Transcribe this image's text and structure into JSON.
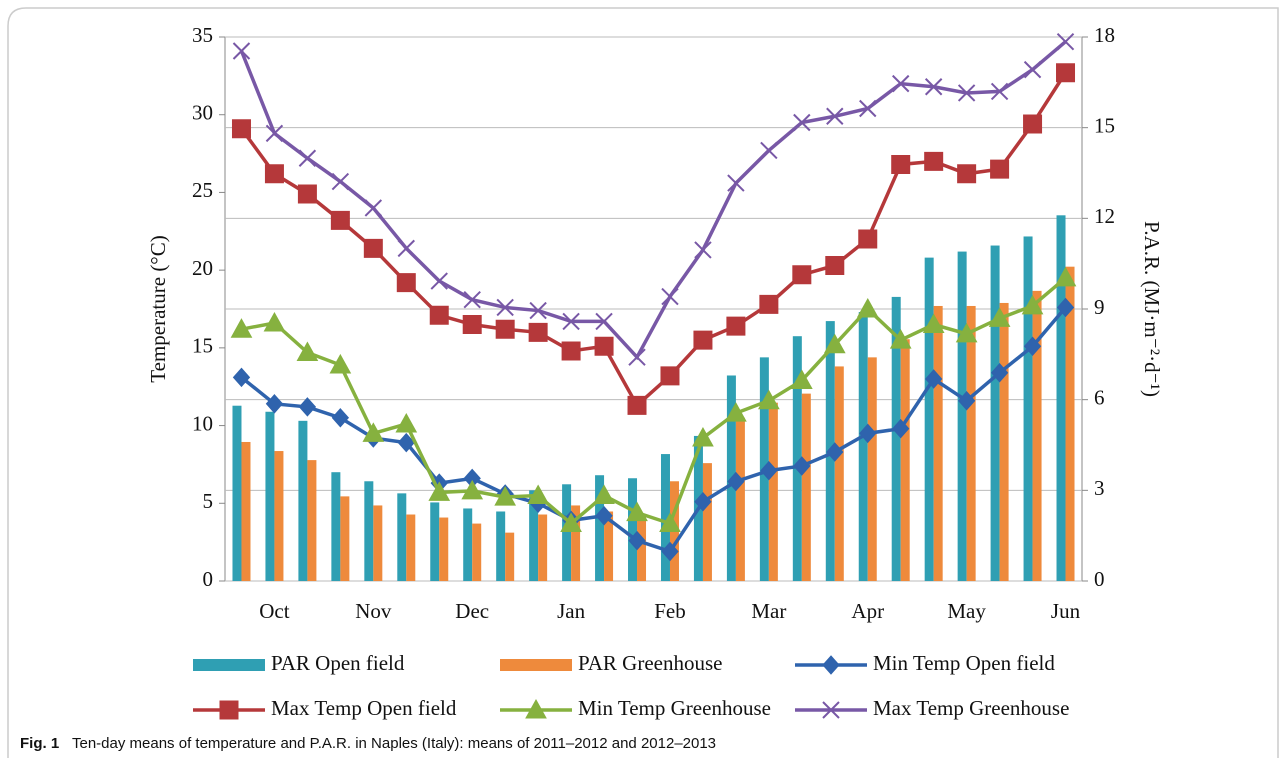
{
  "chart_data": {
    "type": "combo",
    "caption_label": "Fig. 1",
    "caption": "Ten-day means of temperature and P.A.R. in Naples (Italy): means of 2011–2012 and 2012–2013",
    "y_label": "Temperature (°C)",
    "y2_label": "P.A.R. (MJ·m⁻²·d⁻¹)",
    "categories": [
      null,
      "Oct",
      null,
      null,
      "Nov",
      null,
      null,
      "Dec",
      null,
      null,
      "Jan",
      null,
      null,
      "Feb",
      null,
      null,
      "Mar",
      null,
      null,
      "Apr",
      null,
      null,
      "May",
      null,
      null,
      "Jun"
    ],
    "ylim": [
      0,
      35
    ],
    "yticks": [
      0,
      5,
      10,
      15,
      20,
      25,
      30,
      35
    ],
    "y2lim": [
      0,
      18
    ],
    "y2ticks": [
      0,
      3,
      6,
      9,
      12,
      15,
      18
    ],
    "series": [
      {
        "name": "PAR Open field",
        "type": "bar",
        "axis": "y2",
        "color": "#2f9fb3",
        "values": [
          5.8,
          5.6,
          5.3,
          3.6,
          3.3,
          2.9,
          2.6,
          2.4,
          2.3,
          3.0,
          3.2,
          3.5,
          3.4,
          4.2,
          4.8,
          6.8,
          7.4,
          8.1,
          8.6,
          8.9,
          9.4,
          10.7,
          10.9,
          11.1,
          11.4,
          12.1
        ]
      },
      {
        "name": "PAR Greenhouse",
        "type": "bar",
        "axis": "y2",
        "color": "#ee8a3c",
        "values": [
          4.6,
          4.3,
          4.0,
          2.8,
          2.5,
          2.2,
          2.1,
          1.9,
          1.6,
          2.2,
          2.5,
          2.3,
          2.2,
          3.3,
          3.9,
          5.4,
          5.9,
          6.2,
          7.1,
          7.4,
          8.0,
          9.1,
          9.1,
          9.2,
          9.6,
          10.4
        ]
      },
      {
        "name": "Min Temp Open field",
        "type": "line",
        "marker": "diamond",
        "color": "#2f63ad",
        "values": [
          13.1,
          11.4,
          11.2,
          10.5,
          9.2,
          8.9,
          6.3,
          6.6,
          5.6,
          5.0,
          3.9,
          4.2,
          2.6,
          1.9,
          5.1,
          6.4,
          7.1,
          7.4,
          8.3,
          9.5,
          9.8,
          13.0,
          11.6,
          13.4,
          15.1,
          17.6
        ]
      },
      {
        "name": "Max Temp Open field",
        "type": "line",
        "marker": "square",
        "color": "#b5383a",
        "values": [
          29.1,
          26.2,
          24.9,
          23.2,
          21.4,
          19.2,
          17.1,
          16.5,
          16.2,
          16.0,
          14.8,
          15.1,
          11.3,
          13.2,
          15.5,
          16.4,
          17.8,
          19.7,
          20.3,
          22.0,
          26.8,
          27.0,
          26.2,
          26.5,
          29.4,
          32.7
        ]
      },
      {
        "name": "Min Temp Greenhouse",
        "type": "line",
        "marker": "triangle",
        "color": "#86b13f",
        "values": [
          16.2,
          16.6,
          14.7,
          13.9,
          9.5,
          10.1,
          5.7,
          5.8,
          5.4,
          5.5,
          3.7,
          5.5,
          4.4,
          3.7,
          9.2,
          10.8,
          11.6,
          12.9,
          15.2,
          17.5,
          15.5,
          16.5,
          15.9,
          16.9,
          17.7,
          19.5
        ]
      },
      {
        "name": "Max Temp Greenhouse",
        "type": "line",
        "marker": "x",
        "color": "#7858a6",
        "values": [
          34.1,
          28.8,
          27.2,
          25.7,
          24.0,
          21.4,
          19.3,
          18.1,
          17.6,
          17.4,
          16.7,
          16.7,
          14.4,
          18.3,
          21.3,
          25.6,
          27.7,
          29.5,
          29.9,
          30.4,
          32.0,
          31.8,
          31.4,
          31.5,
          32.9,
          34.7
        ]
      }
    ]
  }
}
